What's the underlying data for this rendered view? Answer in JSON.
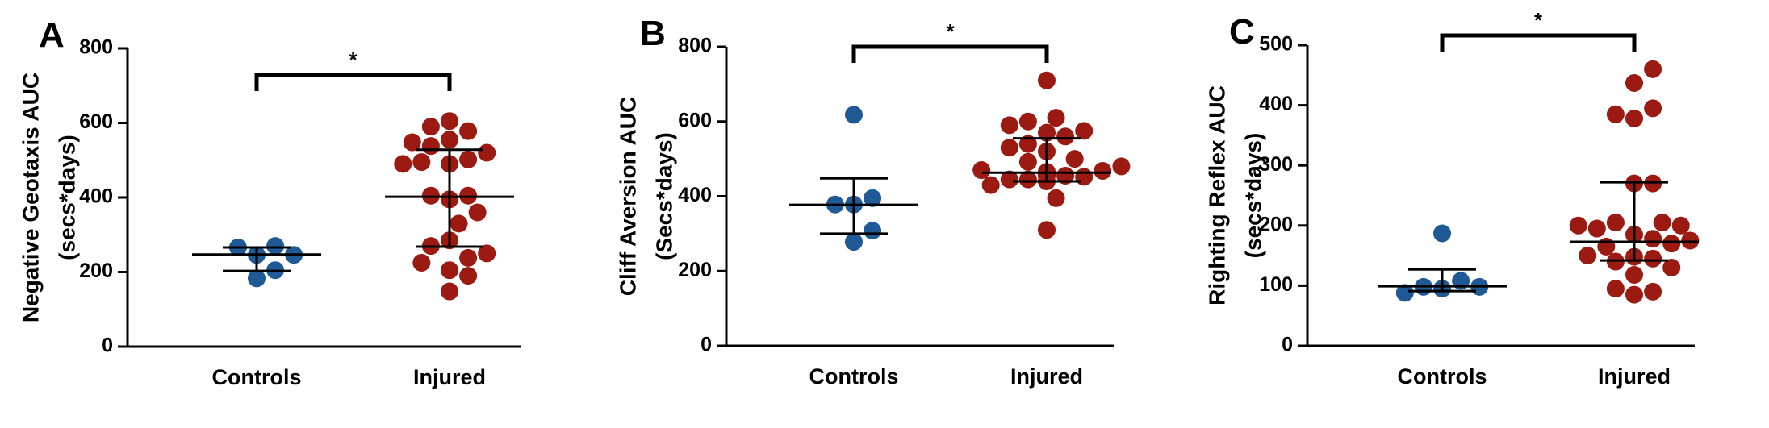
{
  "chart_data": [
    {
      "type": "scatter",
      "panel": "A",
      "ylabel": [
        "Negative Geotaxis AUC",
        "(secs*days)"
      ],
      "ylim": [
        0,
        800
      ],
      "yticks": [
        0,
        200,
        400,
        600,
        800
      ],
      "categories": [
        "Controls",
        "Injured"
      ],
      "series": [
        {
          "category": "Controls",
          "color": "#1f5a96",
          "values": [
            246,
            270,
            183,
            266,
            205,
            246
          ],
          "mean": 247,
          "err_low": 203,
          "err_high": 266
        },
        {
          "category": "Injured",
          "color": "#9b1a12",
          "values": [
            555,
            490,
            395,
            285,
            205,
            502,
            405,
            538,
            578,
            330,
            238,
            148,
            495,
            405,
            270,
            590,
            520,
            548,
            250,
            190,
            605,
            360,
            490,
            225
          ],
          "mean": 402,
          "err_low": 268,
          "err_high": 528
        }
      ],
      "significance": {
        "label": "*",
        "between": [
          "Controls",
          "Injured"
        ]
      }
    },
    {
      "type": "scatter",
      "panel": "B",
      "ylabel": [
        "Cliff Aversion AUC",
        "(Secs*days)"
      ],
      "ylim": [
        0,
        800
      ],
      "yticks": [
        0,
        200,
        400,
        600,
        800
      ],
      "categories": [
        "Controls",
        "Injured"
      ],
      "series": [
        {
          "category": "Controls",
          "color": "#1f5a96",
          "values": [
            618,
            378,
            278,
            395,
            308,
            378
          ],
          "mean": 377,
          "err_low": 300,
          "err_high": 448
        },
        {
          "category": "Injured",
          "color": "#9b1a12",
          "values": [
            465,
            455,
            492,
            445,
            452,
            445,
            468,
            570,
            520,
            430,
            560,
            470,
            710,
            540,
            480,
            310,
            460,
            575,
            500,
            530,
            600,
            440,
            590,
            460,
            395,
            610,
            455,
            465,
            462
          ],
          "mean": 463,
          "err_low": 440,
          "err_high": 555
        }
      ],
      "significance": {
        "label": "*",
        "between": [
          "Controls",
          "Injured"
        ]
      }
    },
    {
      "type": "scatter",
      "panel": "C",
      "ylabel": [
        "Righting Reflex AUC",
        "(secs*days)"
      ],
      "ylim": [
        0,
        500
      ],
      "yticks": [
        0,
        100,
        200,
        300,
        400,
        500
      ],
      "categories": [
        "Controls",
        "Injured"
      ],
      "series": [
        {
          "category": "Controls",
          "color": "#1f5a96",
          "values": [
            95,
            108,
            98,
            187,
            98,
            88
          ],
          "mean": 99,
          "err_low": 91,
          "err_high": 127
        },
        {
          "category": "Injured",
          "color": "#9b1a12",
          "values": [
            185,
            148,
            378,
            118,
            85,
            437,
            178,
            205,
            145,
            270,
            205,
            140,
            395,
            165,
            195,
            90,
            460,
            270,
            170,
            130,
            200,
            385,
            95,
            150,
            175,
            200
          ],
          "mean": 173,
          "err_low": 142,
          "err_high": 272
        }
      ],
      "significance": {
        "label": "*",
        "between": [
          "Controls",
          "Injured"
        ]
      }
    }
  ]
}
